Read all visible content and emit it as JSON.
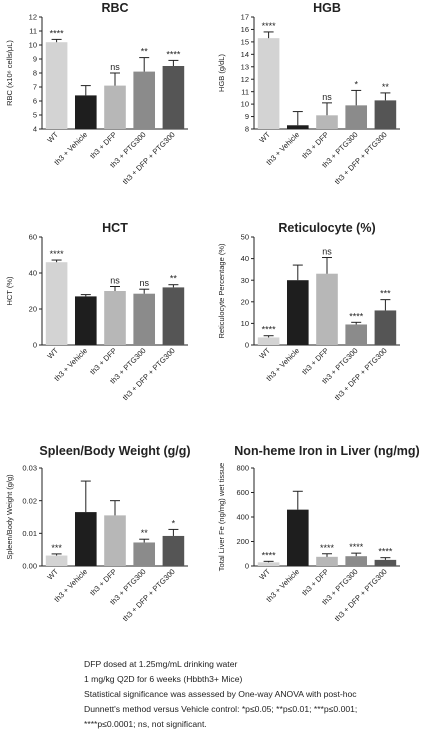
{
  "chart_data": [
    {
      "type": "bar",
      "title": "RBC",
      "ylabel": "RBC (x10⁶ cells/μL)",
      "ylim": [
        4,
        12
      ],
      "yticks": [
        4,
        5,
        6,
        7,
        8,
        9,
        10,
        11,
        12
      ],
      "categories": [
        "WT",
        "th3 + Vehicle",
        "th3 + DFP",
        "th3 + PTG300",
        "th3 + DFP + PTG300"
      ],
      "values": [
        10.2,
        6.4,
        7.1,
        8.1,
        8.5
      ],
      "errors": [
        0.2,
        0.7,
        0.9,
        1.0,
        0.4
      ],
      "significance": [
        "****",
        "",
        "ns",
        "**",
        "****"
      ],
      "colors": [
        "#d3d3d3",
        "#1e1e1e",
        "#b7b7b7",
        "#8b8b8b",
        "#555555"
      ]
    },
    {
      "type": "bar",
      "title": "HGB",
      "ylabel": "HGB (g/dL)",
      "ylim": [
        8,
        17
      ],
      "yticks": [
        8,
        9,
        10,
        11,
        12,
        13,
        14,
        15,
        16,
        17
      ],
      "categories": [
        "WT",
        "th3 + Vehicle",
        "th3 + DFP",
        "th3 + PTG300",
        "th3 + DFP + PTG300"
      ],
      "values": [
        15.3,
        8.3,
        9.1,
        9.9,
        10.3
      ],
      "errors": [
        0.5,
        1.1,
        1.0,
        1.2,
        0.6
      ],
      "significance": [
        "****",
        "",
        "ns",
        "*",
        "**"
      ],
      "colors": [
        "#d3d3d3",
        "#1e1e1e",
        "#b7b7b7",
        "#8b8b8b",
        "#555555"
      ]
    },
    {
      "type": "bar",
      "title": "HCT",
      "ylabel": "HCT (%)",
      "ylim": [
        0,
        60
      ],
      "yticks": [
        0,
        20,
        40,
        60
      ],
      "categories": [
        "WT",
        "th3 + Vehicle",
        "th3 + DFP",
        "th3 + PTG300",
        "th3 + DFP + PTG300"
      ],
      "values": [
        46,
        27,
        30,
        28.5,
        32
      ],
      "errors": [
        1.2,
        1.0,
        2.5,
        2.5,
        1.5
      ],
      "significance": [
        "****",
        "",
        "ns",
        "ns",
        "**"
      ],
      "colors": [
        "#d3d3d3",
        "#1e1e1e",
        "#b7b7b7",
        "#8b8b8b",
        "#555555"
      ]
    },
    {
      "type": "bar",
      "title": "Reticulocyte (%)",
      "ylabel": "Reticulocyte Percentage (%)",
      "ylim": [
        0,
        50
      ],
      "yticks": [
        0,
        10,
        20,
        30,
        40,
        50
      ],
      "categories": [
        "WT",
        "th3 + Vehicle",
        "th3 + DFP",
        "th3 + PTG300",
        "th3 + DFP + PTG300"
      ],
      "values": [
        3.5,
        30,
        33,
        9.5,
        16
      ],
      "errors": [
        0.8,
        7,
        7.5,
        1,
        5
      ],
      "significance": [
        "****",
        "",
        "ns",
        "****",
        "***"
      ],
      "colors": [
        "#d3d3d3",
        "#1e1e1e",
        "#b7b7b7",
        "#8b8b8b",
        "#555555"
      ]
    },
    {
      "type": "bar",
      "title": "Spleen/Body Weight (g/g)",
      "ylabel": "Spleen/Body Weight (g/g)",
      "ylim": [
        0,
        0.03
      ],
      "yticks": [
        0,
        0.01,
        0.02,
        0.03
      ],
      "ytick_labels": [
        "0.00",
        "0.01",
        "0.02",
        "0.03"
      ],
      "categories": [
        "WT",
        "th3 + Vehicle",
        "th3 + DFP",
        "th3 + PTG300",
        "th3 + DFP + PTG300"
      ],
      "values": [
        0.0032,
        0.0165,
        0.0155,
        0.0072,
        0.0092
      ],
      "errors": [
        0.0005,
        0.0095,
        0.0045,
        0.001,
        0.002
      ],
      "significance": [
        "***",
        "",
        "",
        "**",
        "*"
      ],
      "colors": [
        "#d3d3d3",
        "#1e1e1e",
        "#b7b7b7",
        "#8b8b8b",
        "#555555"
      ]
    },
    {
      "type": "bar",
      "title": "Non-heme Iron in Liver (ng/mg)",
      "ylabel": "Total Liver Fe (ng/mg) wet tissue",
      "ylim": [
        0,
        800
      ],
      "yticks": [
        0,
        200,
        400,
        600,
        800
      ],
      "categories": [
        "WT",
        "th3 + Vehicle",
        "th3 + DFP",
        "th3 + PTG300",
        "th3 + DFP + PTG300"
      ],
      "values": [
        30,
        460,
        75,
        80,
        50
      ],
      "errors": [
        8,
        150,
        25,
        25,
        18
      ],
      "significance": [
        "****",
        "",
        "****",
        "****",
        "****"
      ],
      "colors": [
        "#d3d3d3",
        "#1e1e1e",
        "#b7b7b7",
        "#8b8b8b",
        "#555555"
      ]
    }
  ],
  "footnotes": {
    "line1": "DFP dosed at 1.25mg/mL drinking water",
    "line2": "1 mg/kg Q2D for 6 weeks (Hbbth3+ Mice)",
    "line3": "Statistical significance was assessed by One-way ANOVA with post-hoc",
    "line4": "Dunnett's method versus Vehicle control:  *p≤0.05; **p≤0.01; ***p≤0.001;",
    "line5": "****p≤0.0001; ns, not significant."
  }
}
